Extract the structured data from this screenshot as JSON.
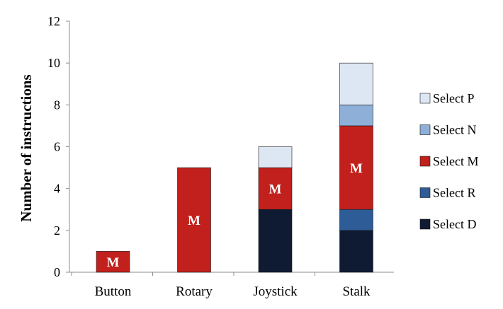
{
  "chart_data": {
    "type": "bar",
    "stacked": true,
    "categories": [
      "Button",
      "Rotary",
      "Joystick",
      "Stalk"
    ],
    "series": [
      {
        "name": "Select D",
        "values": [
          0,
          0,
          3,
          2
        ],
        "color": "#0f1b33"
      },
      {
        "name": "Select R",
        "values": [
          0,
          0,
          0,
          1
        ],
        "color": "#2d5c96"
      },
      {
        "name": "Select M",
        "values": [
          1,
          5,
          2,
          4
        ],
        "color": "#c1201c"
      },
      {
        "name": "Select N",
        "values": [
          0,
          0,
          0,
          1
        ],
        "color": "#8eafd8"
      },
      {
        "name": "Select P",
        "values": [
          0,
          0,
          1,
          2
        ],
        "color": "#dde6f3"
      }
    ],
    "segment_labels": [
      {
        "category": "Button",
        "series": "Select M",
        "text": "M"
      },
      {
        "category": "Rotary",
        "series": "Select M",
        "text": "M"
      },
      {
        "category": "Joystick",
        "series": "Select M",
        "text": "M"
      },
      {
        "category": "Stalk",
        "series": "Select M",
        "text": "M"
      }
    ],
    "ylabel": "Number of instructions",
    "xlabel": "",
    "ylim": [
      0,
      12
    ],
    "yticks": [
      0,
      2,
      4,
      6,
      8,
      10,
      12
    ],
    "grid": false,
    "legend_position": "right",
    "legend_order": [
      "Select P",
      "Select N",
      "Select M",
      "Select R",
      "Select D"
    ]
  }
}
